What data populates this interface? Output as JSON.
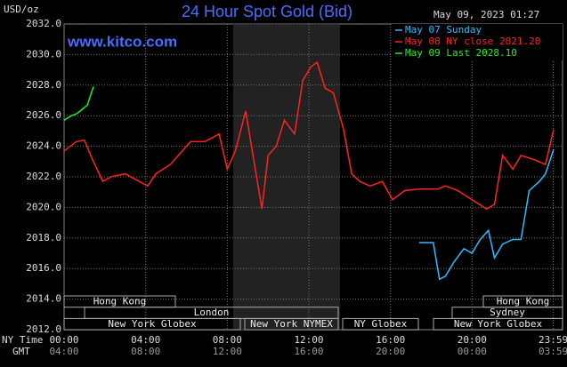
{
  "chart_data": {
    "type": "line",
    "title": "24 Hour Spot Gold (Bid)",
    "y_unit": "USD/oz",
    "timestamp": "May 09, 2023 01:27",
    "watermark": "www.kitco.com",
    "xlim": [
      0,
      24
    ],
    "xticks": [
      {
        "value": 0,
        "label": "00:00"
      },
      {
        "value": 4,
        "label": "04:00"
      },
      {
        "value": 8,
        "label": "08:00"
      },
      {
        "value": 12,
        "label": "12:00"
      },
      {
        "value": 16,
        "label": "16:00"
      },
      {
        "value": 20,
        "label": "20:00"
      },
      {
        "value": 23.98,
        "label": "23:59"
      }
    ],
    "x_row_label": "NY Time",
    "gmt_row_label": "GMT",
    "gmt_labels": [
      "04:00",
      "08:00",
      "12:00",
      "16:00",
      "20:00",
      "00:00",
      "03:59"
    ],
    "ylim": [
      2012,
      2032
    ],
    "yticks": [
      {
        "value": 2012,
        "label": "2012.0"
      },
      {
        "value": 2014,
        "label": "2014.0"
      },
      {
        "value": 2016,
        "label": "2016.0"
      },
      {
        "value": 2018,
        "label": "2018.0"
      },
      {
        "value": 2020,
        "label": "2020.0"
      },
      {
        "value": 2022,
        "label": "2022.0"
      },
      {
        "value": 2024,
        "label": "2024.0"
      },
      {
        "value": 2026,
        "label": "2026.0"
      },
      {
        "value": 2028,
        "label": "2028.0"
      },
      {
        "value": 2030,
        "label": "2030.0"
      },
      {
        "value": 2032,
        "label": "2032.0"
      }
    ],
    "grid": true,
    "legend": "top-right",
    "series": [
      {
        "name": "May 07 Sunday",
        "color": "#33bbff",
        "x": [
          17.4,
          18.1,
          18.3,
          18.4,
          18.7,
          19.1,
          19.6,
          20.0,
          20.4,
          20.8,
          21.1,
          21.5,
          22.0,
          22.4,
          22.8,
          23.3,
          23.6,
          24.0
        ],
        "values": [
          2017.7,
          2017.7,
          2016.1,
          2015.3,
          2015.5,
          2016.4,
          2017.3,
          2017.0,
          2017.9,
          2018.5,
          2016.7,
          2017.6,
          2017.9,
          2017.9,
          2021.1,
          2021.7,
          2022.2,
          2023.8
        ]
      },
      {
        "name": "May 08 NY close 2021.20",
        "color": "#ff2222",
        "x": [
          0,
          0.6,
          1.0,
          1.4,
          1.9,
          2.3,
          3.0,
          3.4,
          4.1,
          4.5,
          5.2,
          5.8,
          6.2,
          6.9,
          7.6,
          8.0,
          8.4,
          8.9,
          9.3,
          9.7,
          10.0,
          10.4,
          10.8,
          11.3,
          11.7,
          12.1,
          12.4,
          12.8,
          13.2,
          13.7,
          14.1,
          14.5,
          15.0,
          15.6,
          16.1,
          16.7,
          17.4,
          18.3,
          18.7,
          19.3,
          20.0,
          20.7,
          21.1,
          21.5,
          22.0,
          22.4,
          23.1,
          23.6,
          24.0
        ],
        "values": [
          2023.7,
          2024.3,
          2024.4,
          2023.1,
          2021.7,
          2022.0,
          2022.2,
          2021.9,
          2021.4,
          2022.2,
          2022.8,
          2023.7,
          2024.3,
          2024.3,
          2024.8,
          2022.5,
          2023.7,
          2026.3,
          2023.1,
          2019.9,
          2023.4,
          2024.0,
          2025.7,
          2024.8,
          2028.3,
          2029.2,
          2029.5,
          2027.8,
          2027.5,
          2025.1,
          2022.2,
          2021.7,
          2021.4,
          2021.7,
          2020.5,
          2021.1,
          2021.2,
          2021.2,
          2021.4,
          2021.1,
          2020.5,
          2019.9,
          2020.2,
          2023.4,
          2022.5,
          2023.4,
          2023.1,
          2022.8,
          2025.1
        ]
      },
      {
        "name": "May 09 Last 2028.10",
        "color": "#22ee22",
        "x": [
          0,
          0.35,
          0.57,
          0.79,
          1.14,
          1.44
        ],
        "values": [
          2025.7,
          2026.0,
          2026.1,
          2026.3,
          2026.7,
          2027.9
        ]
      }
    ],
    "sessions": [
      [
        "Hong Kong",
        "Hong Kong"
      ],
      [
        "London",
        "Sydney"
      ],
      [
        "New York Globex",
        "New York NYMEX",
        "NY Globex",
        "New York Globex"
      ]
    ]
  }
}
